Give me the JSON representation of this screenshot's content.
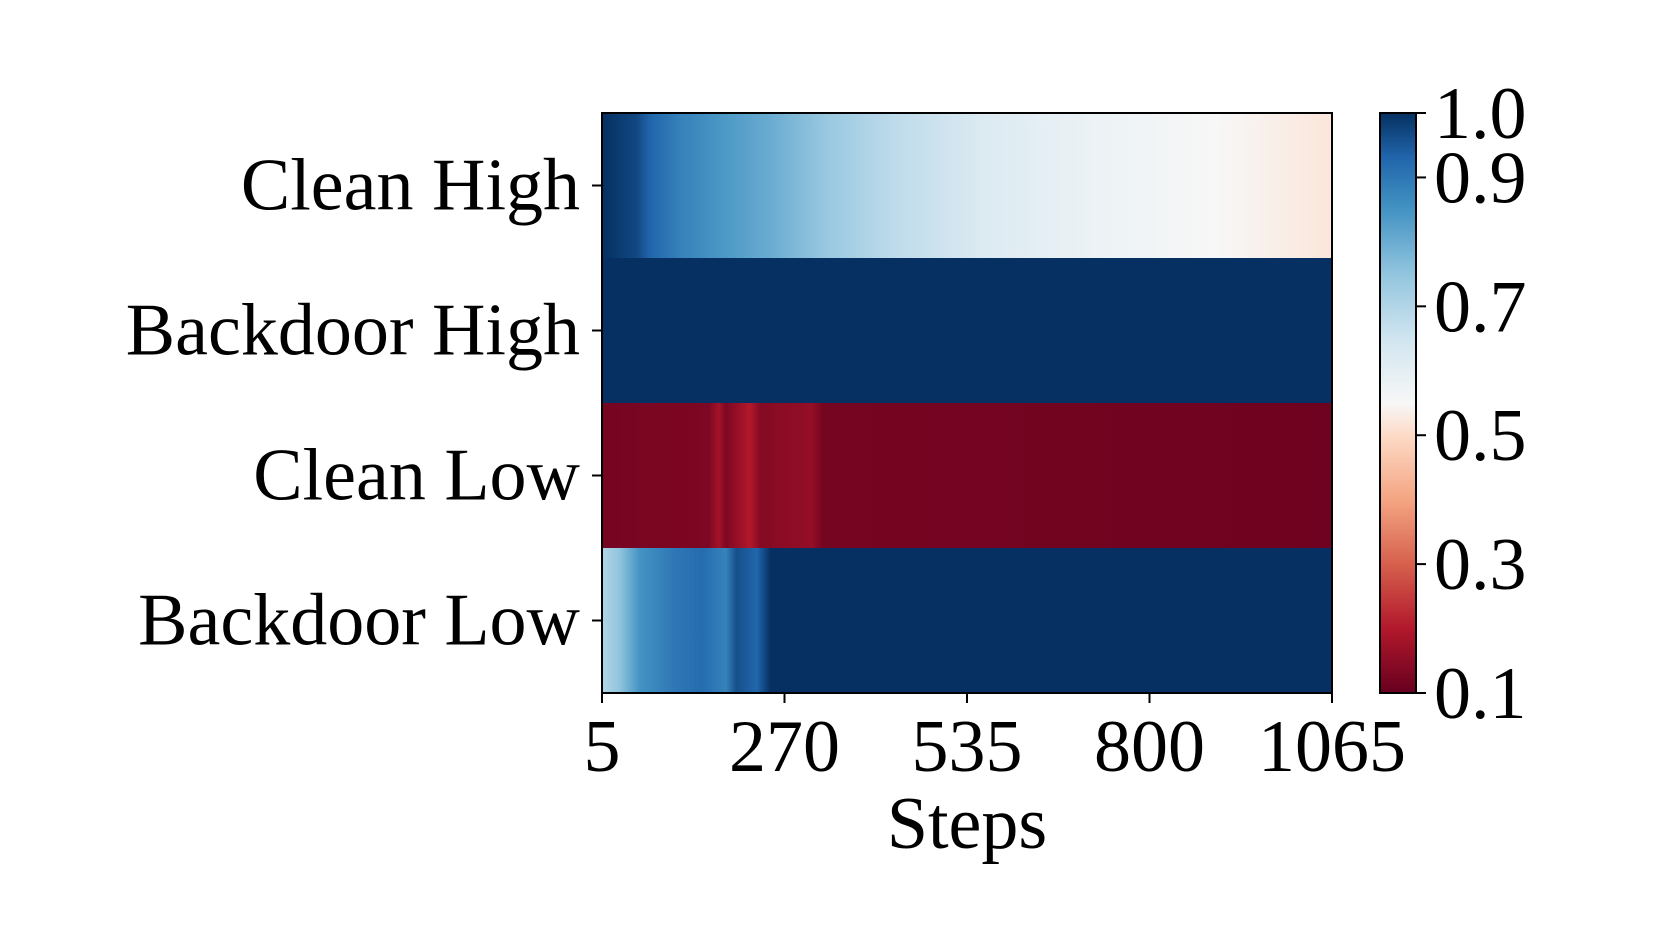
{
  "chart_data": {
    "type": "heatmap",
    "title": "",
    "xlabel": "Steps",
    "ylabel": "",
    "rows": [
      "Clean High",
      "Backdoor High",
      "Clean Low",
      "Backdoor Low"
    ],
    "x_range": [
      5,
      1065
    ],
    "x_ticks": [
      "5",
      "270",
      "535",
      "800",
      "1065"
    ],
    "colormap": "RdBu",
    "colorbar": {
      "min": 0.1,
      "max": 1.0,
      "ticks": [
        "0.1",
        "0.3",
        "0.5",
        "0.7",
        "0.9",
        "1.0"
      ],
      "stops": [
        {
          "value": 0.1,
          "color": "#67001f"
        },
        {
          "value": 0.2,
          "color": "#b2182b"
        },
        {
          "value": 0.3,
          "color": "#d6604d"
        },
        {
          "value": 0.4,
          "color": "#f4a582"
        },
        {
          "value": 0.5,
          "color": "#fddbc7"
        },
        {
          "value": 0.55,
          "color": "#f7f7f7"
        },
        {
          "value": 0.65,
          "color": "#d1e5f0"
        },
        {
          "value": 0.75,
          "color": "#92c5de"
        },
        {
          "value": 0.85,
          "color": "#4393c3"
        },
        {
          "value": 0.93,
          "color": "#2166ac"
        },
        {
          "value": 1.0,
          "color": "#053061"
        }
      ]
    },
    "series": [
      {
        "name": "Clean High",
        "points": [
          {
            "x": 5,
            "value": 1.0
          },
          {
            "x": 55,
            "value": 0.97
          },
          {
            "x": 75,
            "value": 0.93
          },
          {
            "x": 120,
            "value": 0.88
          },
          {
            "x": 180,
            "value": 0.84
          },
          {
            "x": 250,
            "value": 0.8
          },
          {
            "x": 330,
            "value": 0.74
          },
          {
            "x": 430,
            "value": 0.68
          },
          {
            "x": 560,
            "value": 0.62
          },
          {
            "x": 720,
            "value": 0.58
          },
          {
            "x": 900,
            "value": 0.55
          },
          {
            "x": 1065,
            "value": 0.52
          }
        ]
      },
      {
        "name": "Backdoor High",
        "points": [
          {
            "x": 5,
            "value": 1.0
          },
          {
            "x": 1065,
            "value": 1.0
          }
        ]
      },
      {
        "name": "Clean Low",
        "points": [
          {
            "x": 5,
            "value": 0.12
          },
          {
            "x": 160,
            "value": 0.13
          },
          {
            "x": 175,
            "value": 0.18
          },
          {
            "x": 185,
            "value": 0.13
          },
          {
            "x": 220,
            "value": 0.2
          },
          {
            "x": 235,
            "value": 0.14
          },
          {
            "x": 310,
            "value": 0.16
          },
          {
            "x": 325,
            "value": 0.12
          },
          {
            "x": 1065,
            "value": 0.11
          }
        ]
      },
      {
        "name": "Backdoor Low",
        "points": [
          {
            "x": 5,
            "value": 0.7
          },
          {
            "x": 30,
            "value": 0.75
          },
          {
            "x": 60,
            "value": 0.85
          },
          {
            "x": 110,
            "value": 0.9
          },
          {
            "x": 150,
            "value": 0.92
          },
          {
            "x": 185,
            "value": 0.88
          },
          {
            "x": 200,
            "value": 0.96
          },
          {
            "x": 230,
            "value": 0.93
          },
          {
            "x": 250,
            "value": 1.0
          },
          {
            "x": 1065,
            "value": 1.0
          }
        ]
      }
    ]
  }
}
